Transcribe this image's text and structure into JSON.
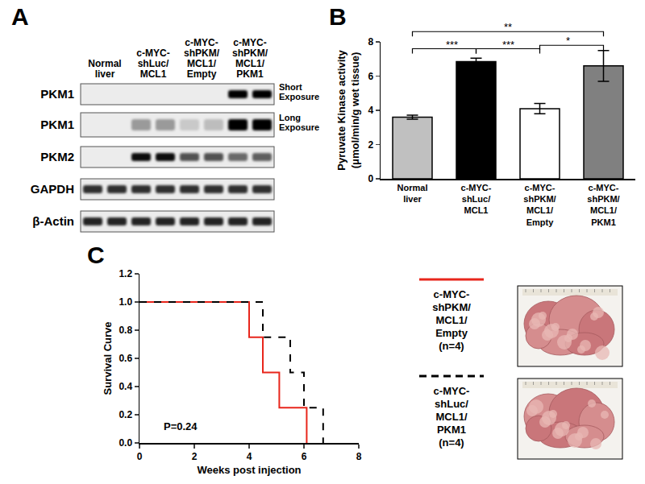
{
  "blot": {
    "panel_label": "A",
    "groups": [
      "Normal liver",
      "c-MYC-shLuc/MCL1",
      "c-MYC-shPKM/MCL1/Empty",
      "c-MYC-shPKM/MCL1/PKM1"
    ],
    "rows": [
      {
        "label": "PKM1",
        "note": "Short Exposure",
        "intensity": [
          0,
          0,
          0,
          0,
          0,
          0,
          1,
          1
        ]
      },
      {
        "label": "PKM1",
        "note": "Long Exposure",
        "intensity": [
          0,
          0,
          0.35,
          0.35,
          0.15,
          0.2,
          1,
          1
        ]
      },
      {
        "label": "PKM2",
        "intensity": [
          0,
          0,
          0.95,
          0.95,
          0.65,
          0.65,
          0.55,
          0.6
        ]
      },
      {
        "label": "GAPDH",
        "intensity": [
          0.8,
          0.8,
          0.8,
          0.8,
          0.8,
          0.8,
          0.8,
          0.8
        ]
      },
      {
        "label": "β-Actin",
        "intensity": [
          0.85,
          0.85,
          0.85,
          0.85,
          0.85,
          0.85,
          0.85,
          0.85
        ]
      }
    ]
  },
  "chart_data": [
    {
      "panel_label": "B",
      "type": "bar",
      "categories": [
        "Normal liver",
        "c-MYC-shLuc/MCL1",
        "c-MYC-shPKM/MCL1/Empty",
        "c-MYC-shPKM/MCL1/PKM1"
      ],
      "values": [
        3.6,
        6.85,
        4.1,
        6.6
      ],
      "errors": [
        0.12,
        0.2,
        0.3,
        0.9
      ],
      "colors": [
        "#c0c0c0",
        "#000000",
        "#ffffff",
        "#808080"
      ],
      "y_label": "Pyruvate Kinase activity (μmol/min/g wet tissue)",
      "ylim": [
        0,
        8
      ],
      "yticks": [
        0,
        2,
        4,
        6,
        8
      ],
      "grid": false,
      "annotations": [
        {
          "text": "***",
          "from": "Normal liver",
          "to": "c-MYC-shLuc/MCL1",
          "y": 7.6
        },
        {
          "text": "***",
          "from": "c-MYC-shLuc/MCL1",
          "to": "c-MYC-shPKM/MCL1/Empty",
          "y": 7.6
        },
        {
          "text": "*",
          "from": "c-MYC-shPKM/MCL1/Empty",
          "to": "c-MYC-shPKM/MCL1/PKM1",
          "y": 7.8
        },
        {
          "text": "**",
          "from": "Normal liver",
          "to": "c-MYC-shPKM/MCL1/PKM1",
          "y": 8.6
        }
      ]
    },
    {
      "panel_label": "C",
      "type": "step",
      "x_label": "Weeks post injection",
      "y_label": "Survival Curve",
      "xlim": [
        0,
        8
      ],
      "xticks": [
        0,
        2,
        4,
        6,
        8
      ],
      "ylim": [
        0,
        1.2
      ],
      "yticks": [
        {
          "value": 0,
          "label": "0.0"
        },
        {
          "value": 0.2,
          "label": "0.2"
        },
        {
          "value": 0.4,
          "label": "0.4"
        },
        {
          "value": 0.6,
          "label": "0.6"
        },
        {
          "value": 0.8,
          "label": "0.8"
        },
        {
          "value": 1.0,
          "label": "1.0"
        },
        {
          "value": 1.2,
          "label": "1.2"
        }
      ],
      "grid": false,
      "legend": "right",
      "series": [
        {
          "name": "c-MYC-shPKM/MCL1/Empty (n=4)",
          "color": "#e8261c",
          "line_style": "solid",
          "x": [
            0,
            4.0,
            4.5,
            5.1,
            6.1
          ],
          "values": [
            1,
            0.75,
            0.5,
            0.25,
            0
          ]
        },
        {
          "name": "c-MYC-shLuc/MCL1/PKM1 (n=4)",
          "color": "#000000",
          "line_style": "dash",
          "x": [
            0,
            4.5,
            5.5,
            6.0,
            6.7
          ],
          "values": [
            1,
            0.75,
            0.5,
            0.25,
            0
          ]
        }
      ],
      "annotations": [
        {
          "text": "P=0.24",
          "x": 1.5,
          "y": 0.12
        }
      ]
    }
  ]
}
